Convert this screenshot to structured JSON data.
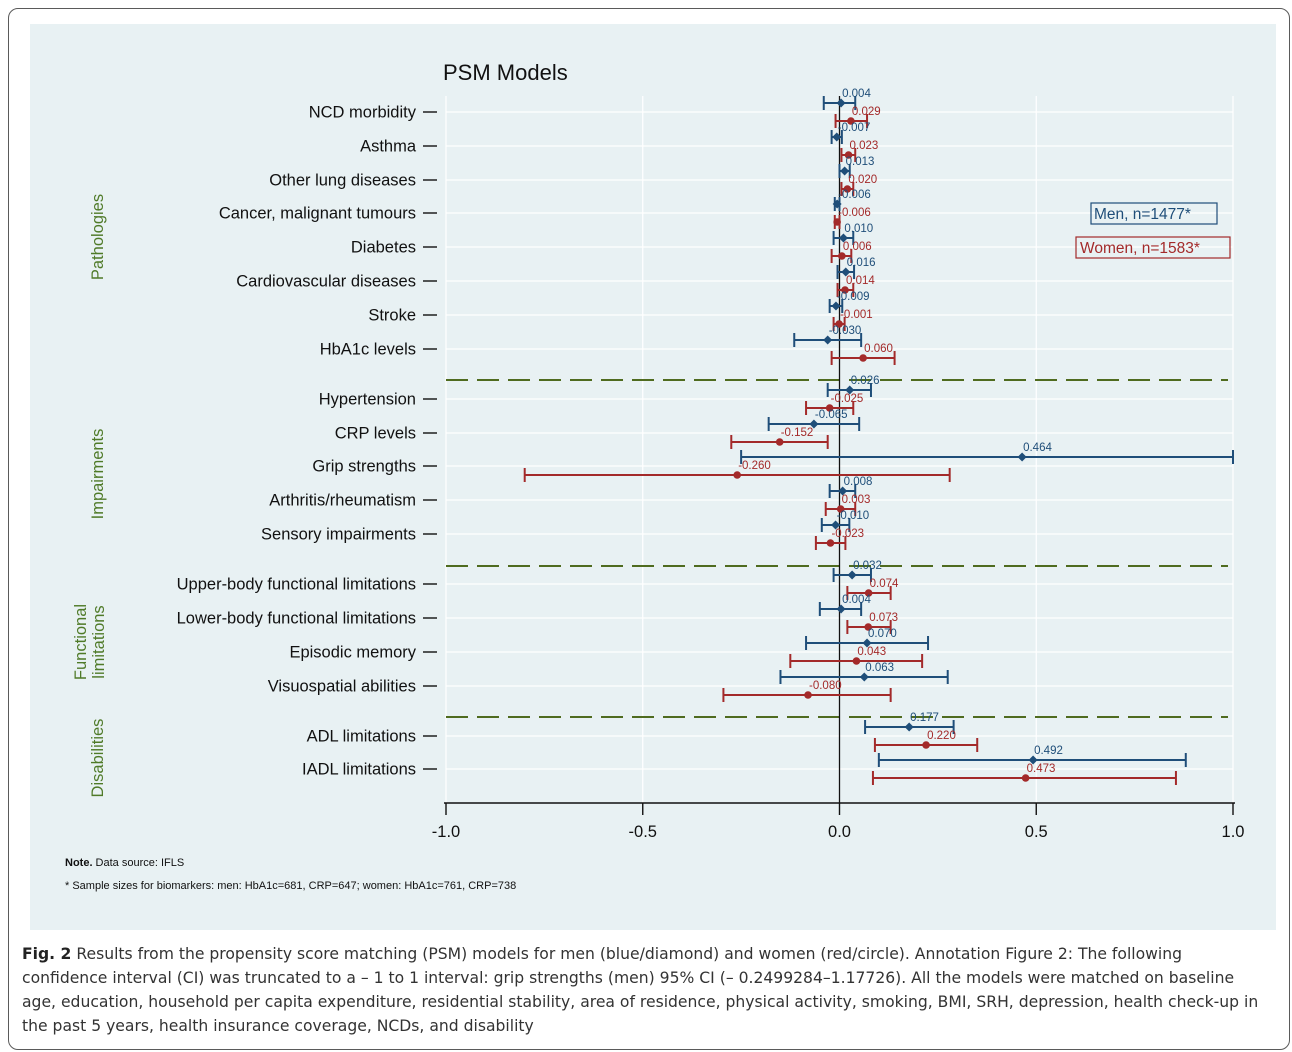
{
  "caption": {
    "label": "Fig. 2",
    "text": "Results from the propensity score matching (PSM) models for men (blue/diamond) and women (red/circle). Annotation Figure 2: The following confidence interval (CI) was truncated to a – 1 to 1 interval: grip strengths (men) 95% CI (– 0.2499284–1.17726). All the models were matched on baseline age, education, household per capita expenditure, residential stability, area of residence, physical activity, smoking, BMI, SRH, depression, health check-up in the past 5 years, health insurance coverage, NCDs, and disability"
  },
  "notes": {
    "note1_bold": "Note.",
    "note1": " Data source: IFLS",
    "note2": "* Sample sizes for biomarkers: men: HbA1c=681, CRP=647; women: HbA1c=761, CRP=738"
  },
  "colors": {
    "men": "#1f4e79",
    "women": "#a32a2a",
    "group": "#4f7a28",
    "separator": "#4f6b1f",
    "panel": "#e8f1f3",
    "grid": "#ffffff"
  },
  "chart_data": {
    "type": "forest",
    "title": "PSM Models",
    "xlim": [
      -1.0,
      1.0
    ],
    "x_ticks": [
      "-1.0",
      "-0.5",
      "0.0",
      "0.5",
      "1.0"
    ],
    "x_tick_values": [
      -1.0,
      -0.5,
      0.0,
      0.5,
      1.0
    ],
    "legend": {
      "men": "Men, n=1477*",
      "women": "Women, n=1583*",
      "position": "right"
    },
    "groups": [
      {
        "label": "Pathologies",
        "items": [
          0,
          1,
          2,
          3,
          4,
          5,
          6,
          7
        ]
      },
      {
        "label": "Impairments",
        "items": [
          8,
          9,
          10,
          11,
          12
        ]
      },
      {
        "label": "Functional limitations",
        "lines": [
          "Functional",
          "limitations"
        ],
        "items": [
          13,
          14,
          15,
          16
        ]
      },
      {
        "label": "Disabilities",
        "items": [
          17,
          18
        ]
      }
    ],
    "outcomes": [
      {
        "name": "NCD morbidity",
        "men": {
          "est": 0.004,
          "lo": -0.04,
          "hi": 0.04,
          "label": "0.004"
        },
        "women": {
          "est": 0.029,
          "lo": -0.01,
          "hi": 0.07,
          "label": "0.029"
        }
      },
      {
        "name": "Asthma",
        "men": {
          "est": -0.007,
          "lo": -0.02,
          "hi": 0.006,
          "label": "-0.007"
        },
        "women": {
          "est": 0.023,
          "lo": 0.005,
          "hi": 0.04,
          "label": "0.023"
        }
      },
      {
        "name": "Other lung diseases",
        "men": {
          "est": 0.013,
          "lo": 0.0,
          "hi": 0.026,
          "label": "0.013"
        },
        "women": {
          "est": 0.02,
          "lo": 0.005,
          "hi": 0.035,
          "label": "0.020"
        }
      },
      {
        "name": "Cancer, malignant tumours",
        "men": {
          "est": -0.006,
          "lo": -0.012,
          "hi": 0.0,
          "label": "-0.006"
        },
        "women": {
          "est": -0.006,
          "lo": -0.012,
          "hi": 0.0,
          "label": "-0.006"
        }
      },
      {
        "name": "Diabetes",
        "men": {
          "est": 0.01,
          "lo": -0.015,
          "hi": 0.035,
          "label": "0.010"
        },
        "women": {
          "est": 0.006,
          "lo": -0.02,
          "hi": 0.03,
          "label": "0.006"
        }
      },
      {
        "name": "Cardiovascular diseases",
        "men": {
          "est": 0.016,
          "lo": -0.005,
          "hi": 0.037,
          "label": "0.016"
        },
        "women": {
          "est": 0.014,
          "lo": -0.005,
          "hi": 0.035,
          "label": "0.014"
        }
      },
      {
        "name": "Stroke",
        "men": {
          "est": -0.009,
          "lo": -0.025,
          "hi": 0.007,
          "label": "-0.009"
        },
        "women": {
          "est": -0.001,
          "lo": -0.015,
          "hi": 0.013,
          "label": "-0.001"
        }
      },
      {
        "name": "HbA1c levels",
        "men": {
          "est": -0.03,
          "lo": -0.115,
          "hi": 0.055,
          "label": "-0.030"
        },
        "women": {
          "est": 0.06,
          "lo": -0.02,
          "hi": 0.14,
          "label": "0.060"
        }
      },
      {
        "name": "Hypertension",
        "men": {
          "est": 0.026,
          "lo": -0.03,
          "hi": 0.08,
          "label": "0.026"
        },
        "women": {
          "est": -0.025,
          "lo": -0.085,
          "hi": 0.035,
          "label": "-0.025"
        }
      },
      {
        "name": "CRP levels",
        "men": {
          "est": -0.065,
          "lo": -0.18,
          "hi": 0.05,
          "label": "-0.065"
        },
        "women": {
          "est": -0.152,
          "lo": -0.275,
          "hi": -0.03,
          "label": "-0.152"
        }
      },
      {
        "name": "Grip strengths",
        "men": {
          "est": 0.464,
          "lo": -0.25,
          "hi": 1.0,
          "label": "0.464"
        },
        "women": {
          "est": -0.26,
          "lo": -0.8,
          "hi": 0.28,
          "label": "-0.260"
        }
      },
      {
        "name": "Arthritis/rheumatism",
        "men": {
          "est": 0.008,
          "lo": -0.025,
          "hi": 0.04,
          "label": "0.008"
        },
        "women": {
          "est": 0.003,
          "lo": -0.035,
          "hi": 0.04,
          "label": "0.003"
        }
      },
      {
        "name": "Sensory impairments",
        "men": {
          "est": -0.01,
          "lo": -0.045,
          "hi": 0.025,
          "label": "-0.010"
        },
        "women": {
          "est": -0.023,
          "lo": -0.06,
          "hi": 0.015,
          "label": "-0.023"
        }
      },
      {
        "name": "Upper-body functional limitations",
        "men": {
          "est": 0.032,
          "lo": -0.015,
          "hi": 0.08,
          "label": "0.032"
        },
        "women": {
          "est": 0.074,
          "lo": 0.02,
          "hi": 0.13,
          "label": "0.074"
        }
      },
      {
        "name": "Lower-body functional limitations",
        "men": {
          "est": 0.004,
          "lo": -0.05,
          "hi": 0.055,
          "label": "0.004"
        },
        "women": {
          "est": 0.073,
          "lo": 0.02,
          "hi": 0.13,
          "label": "0.073"
        }
      },
      {
        "name": "Episodic memory",
        "men": {
          "est": 0.07,
          "lo": -0.085,
          "hi": 0.225,
          "label": "0.070"
        },
        "women": {
          "est": 0.043,
          "lo": -0.125,
          "hi": 0.21,
          "label": "0.043"
        }
      },
      {
        "name": "Visuospatial abilities",
        "men": {
          "est": 0.063,
          "lo": -0.15,
          "hi": 0.275,
          "label": "0.063"
        },
        "women": {
          "est": -0.08,
          "lo": -0.295,
          "hi": 0.13,
          "label": "-0.080"
        }
      },
      {
        "name": "ADL limitations",
        "men": {
          "est": 0.177,
          "lo": 0.065,
          "hi": 0.29,
          "label": "0.177"
        },
        "women": {
          "est": 0.22,
          "lo": 0.09,
          "hi": 0.35,
          "label": "0.220"
        }
      },
      {
        "name": "IADL limitations",
        "men": {
          "est": 0.492,
          "lo": 0.1,
          "hi": 0.88,
          "label": "0.492"
        },
        "women": {
          "est": 0.473,
          "lo": 0.085,
          "hi": 0.855,
          "label": "0.473"
        }
      }
    ]
  }
}
